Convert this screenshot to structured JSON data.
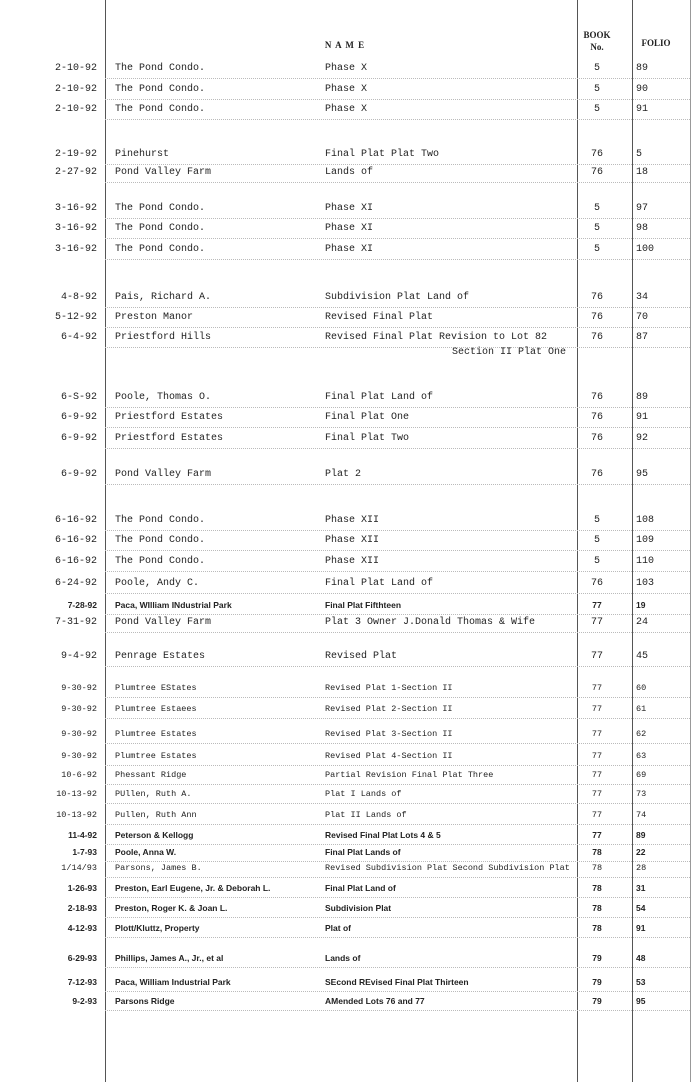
{
  "header": {
    "name": "N A M E",
    "book": "BOOK",
    "book_no": "No.",
    "folio": "FOLIO"
  },
  "rows": [
    {
      "date": "2-10-92",
      "name": "The Pond Condo.",
      "desc": "Phase X",
      "book": "5",
      "folio": "89"
    },
    {
      "date": "2-10-92",
      "name": "The Pond Condo.",
      "desc": "Phase X",
      "book": "5",
      "folio": "90"
    },
    {
      "date": "2-10-92",
      "name": "The Pond Condo.",
      "desc": "Phase X",
      "book": "5",
      "folio": "91"
    },
    {
      "date": "2-19-92",
      "name": "Pinehurst",
      "desc": "Final Plat Plat Two",
      "book": "76",
      "folio": "5"
    },
    {
      "date": "2-27-92",
      "name": "Pond Valley Farm",
      "desc": "Lands of",
      "book": "76",
      "folio": "18"
    },
    {
      "date": "3-16-92",
      "name": "The Pond Condo.",
      "desc": "Phase XI",
      "book": "5",
      "folio": "97"
    },
    {
      "date": "3-16-92",
      "name": "The Pond Condo.",
      "desc": "Phase XI",
      "book": "5",
      "folio": "98"
    },
    {
      "date": "3-16-92",
      "name": "The Pond Condo.",
      "desc": "Phase XI",
      "book": "5",
      "folio": "100"
    },
    {
      "date": "4-8-92",
      "name": "Pais, Richard A.",
      "desc": "Subdivision Plat Land of",
      "book": "76",
      "folio": "34"
    },
    {
      "date": "5-12-92",
      "name": "Preston Manor",
      "desc": "Revised Final Plat",
      "book": "76",
      "folio": "70"
    },
    {
      "date": "6-4-92",
      "name": "Priestford Hills",
      "desc": "Revised Final Plat Revision to Lot 82",
      "desc2": "Section II Plat One",
      "book": "76",
      "folio": "87"
    },
    {
      "date": "6-S-92",
      "name": "Poole, Thomas O.",
      "desc": "Final Plat Land of",
      "book": "76",
      "folio": "89"
    },
    {
      "date": "6-9-92",
      "name": "Priestford Estates",
      "desc": "Final Plat One",
      "book": "76",
      "folio": "91"
    },
    {
      "date": "6-9-92",
      "name": "Priestford Estates",
      "desc": "Final Plat Two",
      "book": "76",
      "folio": "92"
    },
    {
      "date": "6-9-92",
      "name": "Pond Valley Farm",
      "desc": "Plat 2",
      "book": "76",
      "folio": "95"
    },
    {
      "date": "6-16-92",
      "name": "The Pond Condo.",
      "desc": "Phase XII",
      "book": "5",
      "folio": "108"
    },
    {
      "date": "6-16-92",
      "name": "The Pond Condo.",
      "desc": "Phase XII",
      "book": "5",
      "folio": "109"
    },
    {
      "date": "6-16-92",
      "name": "The Pond Condo.",
      "desc": "Phase XII",
      "book": "5",
      "folio": "110"
    },
    {
      "date": "6-24-92",
      "name": "Poole, Andy C.",
      "desc": "Final Plat Land of",
      "book": "76",
      "folio": "103"
    },
    {
      "date": "7-28-92",
      "name": "Paca, WIlliam INdustrial Park",
      "desc": "Final Plat Fifthteen",
      "book": "77",
      "folio": "19",
      "style": "b"
    },
    {
      "date": "7-31-92",
      "name": "Pond Valley Farm",
      "desc": "Plat 3  Owner  J.Donald Thomas & Wife",
      "book": "77",
      "folio": "24"
    },
    {
      "date": "9-4-92",
      "name": "Penrage Estates",
      "desc": "Revised Plat",
      "book": "77",
      "folio": "45"
    },
    {
      "date": "9-30-92",
      "name": "Plumtree EStates",
      "desc": "Revised Plat 1-Section II",
      "book": "77",
      "folio": "60",
      "style": "s"
    },
    {
      "date": "9-30-92",
      "name": "Plumtree Estaees",
      "desc": "Revised Plat 2-Section II",
      "book": "77",
      "folio": "61",
      "style": "s"
    },
    {
      "date": "9-30-92",
      "name": "Plumtree Estates",
      "desc": "Revised Plat 3-Section II",
      "book": "77",
      "folio": "62",
      "style": "s"
    },
    {
      "date": "9-30-92",
      "name": "Plumtree Estates",
      "desc": "Revised Plat 4-Section II",
      "book": "77",
      "folio": "63",
      "style": "s"
    },
    {
      "date": "10-6-92",
      "name": "Phessant Ridge",
      "desc": "Partial Revision Final Plat Three",
      "book": "77",
      "folio": "69",
      "style": "s"
    },
    {
      "date": "10-13-92",
      "name": "PUllen, Ruth A.",
      "desc": "Plat I Lands of",
      "book": "77",
      "folio": "73",
      "style": "s"
    },
    {
      "date": "10-13-92",
      "name": "Pullen, Ruth Ann",
      "desc": "Plat II Lands of",
      "book": "77",
      "folio": "74",
      "style": "s"
    },
    {
      "date": "11-4-92",
      "name": "Peterson & Kellogg",
      "desc": "Revised Final Plat Lots 4 & 5",
      "book": "77",
      "folio": "89",
      "style": "b"
    },
    {
      "date": "1-7-93",
      "name": "Poole, Anna W.",
      "desc": "Final Plat Lands of",
      "book": "78",
      "folio": "22",
      "style": "b"
    },
    {
      "date": "1/14/93",
      "name": "Parsons, James B.",
      "desc": "Revised Subdivision Plat Second Subdivision Plat",
      "book": "78",
      "folio": "28",
      "style": "s"
    },
    {
      "date": "1-26-93",
      "name": "Preston, Earl Eugene, Jr. & Deborah L.",
      "desc": "Final Plat Land of",
      "book": "78",
      "folio": "31",
      "style": "b"
    },
    {
      "date": "2-18-93",
      "name": "Preston, Roger K. & Joan L.",
      "desc": "Subdivision Plat",
      "book": "78",
      "folio": "54",
      "style": "b"
    },
    {
      "date": "4-12-93",
      "name": "Plott/Kluttz, Property",
      "desc": "Plat of",
      "book": "78",
      "folio": "91",
      "style": "b"
    },
    {
      "date": "6-29-93",
      "name": "Phillips, James A., Jr., et al",
      "desc": "Lands of",
      "book": "79",
      "folio": "48",
      "style": "b"
    },
    {
      "date": "7-12-93",
      "name": "Paca, William Industrial Park",
      "desc": "SEcond REvised Final Plat Thirteen",
      "book": "79",
      "folio": "53",
      "style": "b"
    },
    {
      "date": "9-2-93",
      "name": "Parsons Ridge",
      "desc": "AMended Lots 76 and 77",
      "book": "79",
      "folio": "95",
      "style": "b"
    }
  ]
}
